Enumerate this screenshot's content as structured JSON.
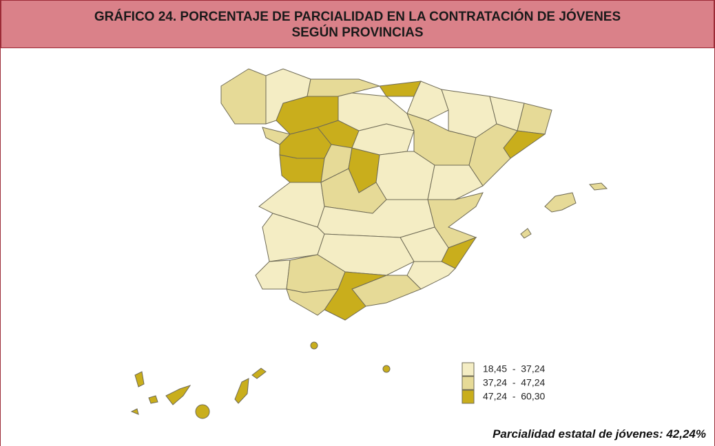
{
  "header": {
    "title_lines": [
      "GRÁFICO 24. PORCENTAJE DE PARCIALIDAD EN LA CONTRATACIÓN DE JÓVENES",
      "SEGÚN PROVINCIAS"
    ]
  },
  "legend": {
    "items": [
      {
        "label": "18,45  -  37,24",
        "color": "#f4edc4"
      },
      {
        "label": "37,24  -  47,24",
        "color": "#e6da97"
      },
      {
        "label": "47,24  -  60,30",
        "color": "#c9ae1c"
      }
    ]
  },
  "note": "Parcialidad estatal de jóvenes: 42,24%"
}
